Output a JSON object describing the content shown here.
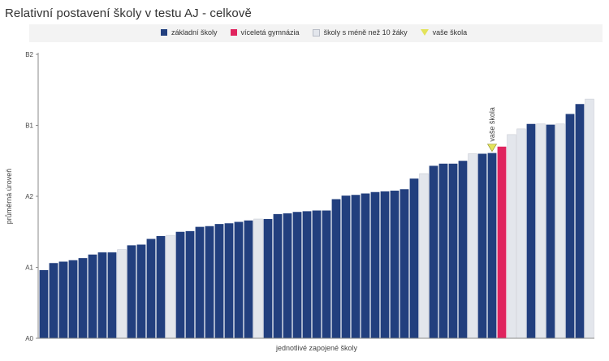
{
  "title": "Relativní postavení školy v testu AJ - celkově",
  "legend": [
    {
      "label": "základní školy",
      "color": "#223f7e"
    },
    {
      "label": "víceletá gymnázia",
      "color": "#e0245e"
    },
    {
      "label": "školy s méně než 10 žáky",
      "color": "#e3e6ec"
    },
    {
      "label": "vaše škola",
      "color": "#e3e35a"
    }
  ],
  "chart_data": {
    "type": "bar",
    "title": "Relativní postavení školy v testu AJ - celkově",
    "xlabel": "jednotlivé zapojené školy",
    "ylabel": "průměrná úroveň",
    "yticks": [
      "A0",
      "A1",
      "A2",
      "B1",
      "B2"
    ],
    "ylim": [
      0,
      4
    ],
    "grid": false,
    "legend_position": "top",
    "marker_label": "vaše škola",
    "marker_index": 46,
    "series": [
      {
        "values": [
          0.96,
          1.06,
          1.08,
          1.1,
          1.13,
          1.18,
          1.21,
          1.21,
          1.25,
          1.31,
          1.32,
          1.4,
          1.44,
          1.45,
          1.5,
          1.51,
          1.57,
          1.58,
          1.61,
          1.62,
          1.64,
          1.66,
          1.68,
          1.68,
          1.75,
          1.76,
          1.78,
          1.79,
          1.8,
          1.8,
          1.96,
          2.01,
          2.02,
          2.04,
          2.06,
          2.07,
          2.08,
          2.1,
          2.25,
          2.32,
          2.43,
          2.46,
          2.46,
          2.5,
          2.6,
          2.6,
          2.61,
          2.7,
          2.87,
          2.95,
          3.02,
          3.02,
          3.01,
          3.02,
          3.16,
          3.3,
          3.37
        ],
        "kinds": [
          "z",
          "z",
          "z",
          "z",
          "z",
          "z",
          "z",
          "z",
          "m",
          "z",
          "z",
          "z",
          "z",
          "m",
          "z",
          "z",
          "z",
          "z",
          "z",
          "z",
          "z",
          "z",
          "m",
          "z",
          "z",
          "z",
          "z",
          "z",
          "z",
          "z",
          "z",
          "z",
          "z",
          "z",
          "z",
          "z",
          "z",
          "z",
          "z",
          "m",
          "z",
          "z",
          "z",
          "z",
          "m",
          "z",
          "z",
          "g",
          "m",
          "m",
          "z",
          "m",
          "z",
          "m",
          "z",
          "z",
          "m"
        ]
      }
    ]
  }
}
